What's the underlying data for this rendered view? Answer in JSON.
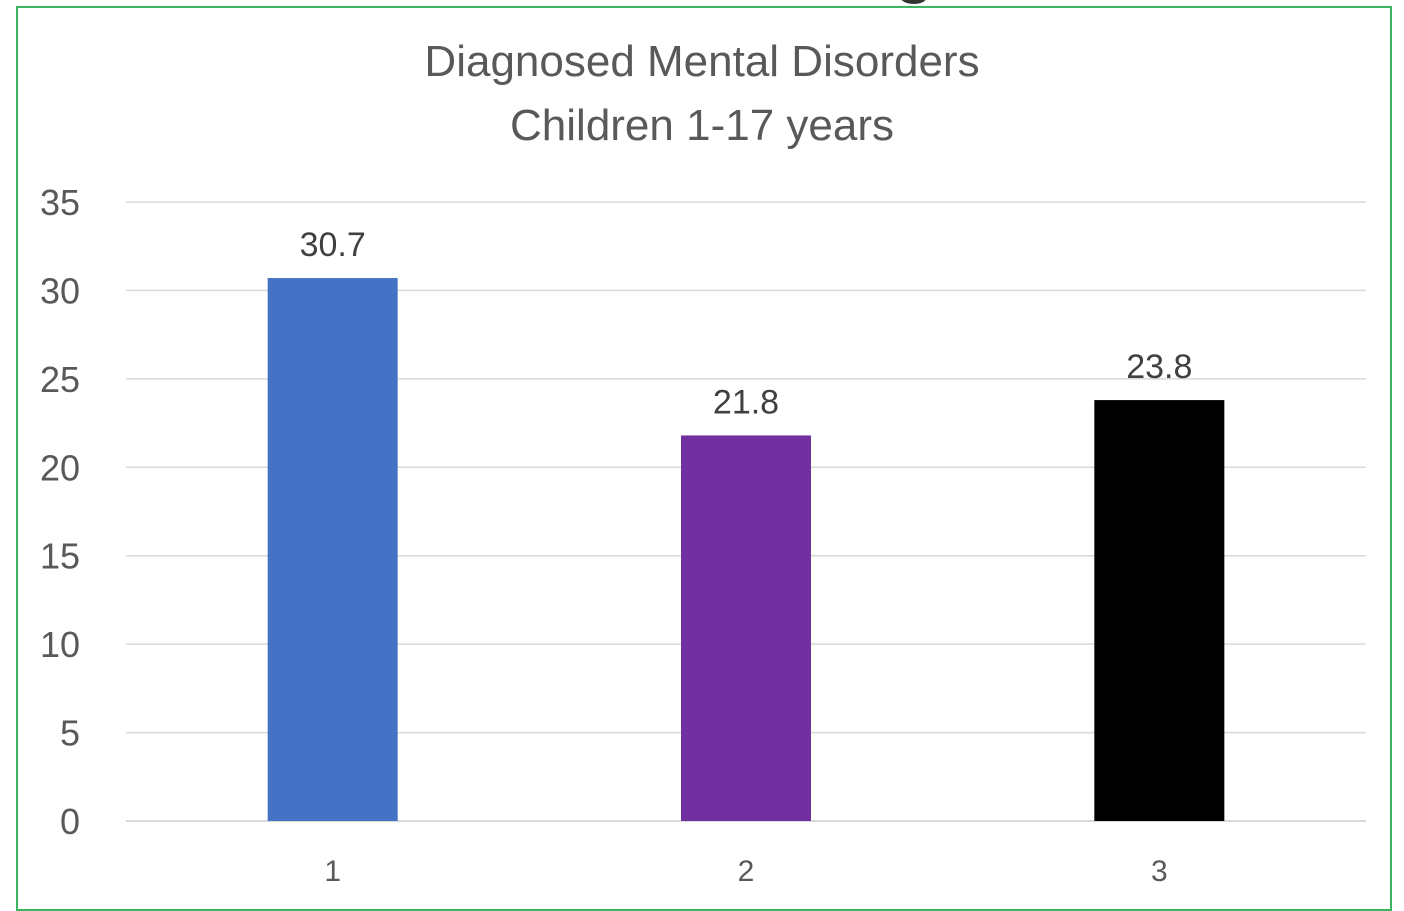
{
  "chart_data": {
    "type": "bar",
    "title": "Diagnosed Mental Disorders",
    "subtitle": "Children 1-17 years",
    "categories": [
      "1",
      "2",
      "3"
    ],
    "values": [
      30.7,
      21.8,
      23.8
    ],
    "data_labels": [
      "30.7",
      "21.8",
      "23.8"
    ],
    "bar_colors": [
      "#4472c4",
      "#7030a0",
      "#000000"
    ],
    "ylim": [
      0,
      35
    ],
    "yticks": [
      "0",
      "5",
      "10",
      "15",
      "20",
      "25",
      "30",
      "35"
    ],
    "xlabel": "",
    "ylabel": "",
    "grid": true,
    "legend": false
  },
  "colors": {
    "frame_border": "#3cb560",
    "gridline": "#d9d9d9",
    "axis_text": "#595959",
    "label_text": "#404040"
  }
}
